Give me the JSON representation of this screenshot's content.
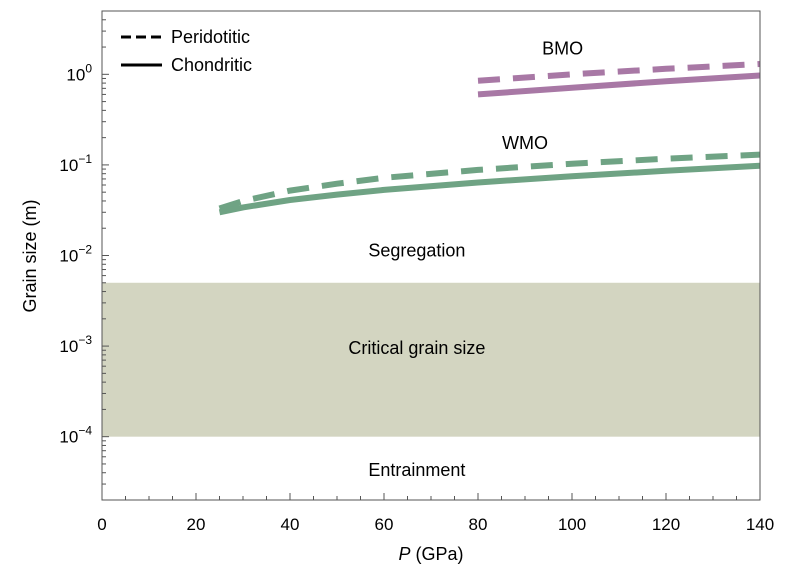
{
  "chart_data": {
    "type": "line",
    "title": "",
    "xlabel_italic": "P",
    "xlabel_rest": " (GPa)",
    "ylabel": "Grain size (m)",
    "xlim": [
      0,
      140
    ],
    "ylim": [
      2e-05,
      5
    ],
    "yscale": "log",
    "grid": false,
    "xticks": [
      0,
      20,
      40,
      60,
      80,
      100,
      120,
      140
    ],
    "yticks": [
      {
        "value": 0.0001,
        "base": "10",
        "exp": "−4"
      },
      {
        "value": 0.001,
        "base": "10",
        "exp": "−3"
      },
      {
        "value": 0.01,
        "base": "10",
        "exp": "−2"
      },
      {
        "value": 0.1,
        "base": "10",
        "exp": "−1"
      },
      {
        "value": 1,
        "base": "10",
        "exp": "0"
      }
    ],
    "band": {
      "name": "Critical grain size",
      "ymin": 0.0001,
      "ymax": 0.005,
      "color": "#d3d5c1"
    },
    "series": [
      {
        "name": "BMO Peridotitic",
        "group": "BMO",
        "style": "dashed",
        "color": "#a878a5",
        "x": [
          80,
          100,
          120,
          140
        ],
        "y": [
          0.85,
          1.0,
          1.15,
          1.3
        ]
      },
      {
        "name": "BMO Chondritic",
        "group": "BMO",
        "style": "solid",
        "color": "#a878a5",
        "x": [
          80,
          100,
          120,
          140
        ],
        "y": [
          0.6,
          0.71,
          0.84,
          0.97
        ]
      },
      {
        "name": "WMO Peridotitic",
        "group": "WMO",
        "style": "dashed",
        "color": "#6fa384",
        "x": [
          25,
          30,
          40,
          50,
          60,
          80,
          100,
          120,
          140
        ],
        "y": [
          0.033,
          0.04,
          0.052,
          0.062,
          0.072,
          0.088,
          0.103,
          0.117,
          0.13
        ]
      },
      {
        "name": "WMO Chondritic",
        "group": "WMO",
        "style": "solid",
        "color": "#6fa384",
        "x": [
          25,
          30,
          40,
          50,
          60,
          80,
          100,
          120,
          140
        ],
        "y": [
          0.03,
          0.034,
          0.041,
          0.047,
          0.053,
          0.064,
          0.075,
          0.086,
          0.098
        ]
      }
    ],
    "annotations": [
      {
        "text": "BMO",
        "x": 98,
        "y": 1.65
      },
      {
        "text": "WMO",
        "x": 90,
        "y": 0.15
      },
      {
        "text": "Segregation",
        "x": 67,
        "y": 0.0098
      },
      {
        "text": "Critical grain size",
        "x": 67,
        "y": 0.00082
      },
      {
        "text": "Entrainment",
        "x": 67,
        "y": 3.7e-05
      }
    ],
    "legend": {
      "placement": "top-left",
      "entries": [
        {
          "label": "Peridotitic",
          "style": "dashed"
        },
        {
          "label": "Chondritic",
          "style": "solid"
        }
      ]
    }
  }
}
